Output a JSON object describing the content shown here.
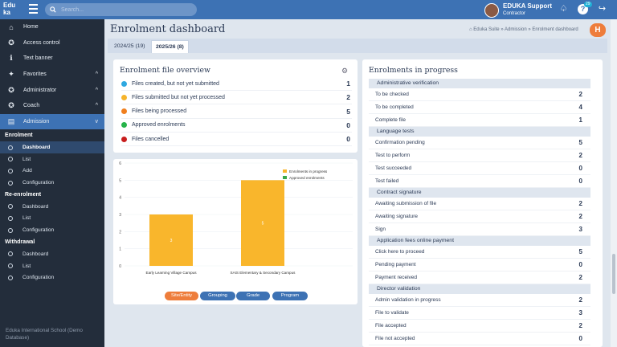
{
  "app": {
    "logo_line1": "Edu",
    "logo_line2": "ka",
    "search_placeholder": "Search..."
  },
  "user": {
    "name": "EDUKA Support",
    "role": "Contractor",
    "help_badge": "29"
  },
  "sidebar": {
    "items": [
      {
        "label": "Home",
        "icon": "home-icon",
        "glyph": "⌂"
      },
      {
        "label": "Access control",
        "icon": "user-key-icon",
        "glyph": "✪"
      },
      {
        "label": "Text banner",
        "icon": "info-icon",
        "glyph": "ℹ"
      },
      {
        "label": "Favorites",
        "icon": "pin-icon",
        "glyph": "✦",
        "chev": "^"
      },
      {
        "label": "Administrator",
        "icon": "user-cog-icon",
        "glyph": "✪",
        "chev": "^"
      },
      {
        "label": "Coach",
        "icon": "user-cog-icon",
        "glyph": "✪",
        "chev": "^"
      },
      {
        "label": "Admission",
        "icon": "document-icon",
        "glyph": "▤",
        "chev": "v"
      }
    ],
    "sections": [
      {
        "title": "Enrolment",
        "subs": [
          "Dashboard",
          "List",
          "Add",
          "Configuration"
        ]
      },
      {
        "title": "Re-enrolment",
        "subs": [
          "Dashboard",
          "List",
          "Configuration"
        ]
      },
      {
        "title": "Withdrawal",
        "subs": [
          "Dashboard",
          "List",
          "Configuration"
        ]
      }
    ],
    "footer": "Eduka International School (Demo Database)"
  },
  "page": {
    "title": "Enrolment dashboard",
    "breadcrumb": "⌂ Eduka Suite » Admission » Enrolment dashboard",
    "tabs": [
      "2024/25 (19)",
      "2025/26 (8)"
    ]
  },
  "overview": {
    "title": "Enrolment file overview",
    "rows": [
      {
        "label": "Files created, but not yet submitted",
        "count": "1",
        "color": "#2fa8e0"
      },
      {
        "label": "Files submitted but not yet processed",
        "count": "2",
        "color": "#f6b42c"
      },
      {
        "label": "Files being processed",
        "count": "5",
        "color": "#f07f1e"
      },
      {
        "label": "Approved enrolments",
        "count": "0",
        "color": "#27b34a"
      },
      {
        "label": "Files cancelled",
        "count": "0",
        "color": "#c81e1e"
      }
    ]
  },
  "chart_data": {
    "type": "bar",
    "categories": [
      "Early Learning Village Campus",
      "SAIS Elementary & Secondary Campus"
    ],
    "series": [
      {
        "name": "Enrolments in progress",
        "values": [
          3,
          5
        ],
        "color": "#f9b62c"
      },
      {
        "name": "Approved enrolments",
        "values": [
          0,
          0
        ],
        "color": "#3aa84a"
      }
    ],
    "ylim": [
      0,
      6
    ],
    "yticks": [
      "0",
      "1",
      "2",
      "3",
      "4",
      "5",
      "6"
    ],
    "data_labels": [
      "3",
      "5"
    ],
    "legend": "top-right",
    "buttons": [
      "Site/Entity",
      "Grouping",
      "Grade",
      "Program"
    ]
  },
  "progress": {
    "title": "Enrolments in progress",
    "groups": [
      {
        "title": "Administrative verification",
        "rows": [
          [
            "To be checked",
            "2"
          ],
          [
            "To be completed",
            "4"
          ],
          [
            "Complete file",
            "1"
          ]
        ]
      },
      {
        "title": "Language tests",
        "rows": [
          [
            "Confirmation pending",
            "5"
          ],
          [
            "Test to perform",
            "2"
          ],
          [
            "Test succeeded",
            "0"
          ],
          [
            "Test failed",
            "0"
          ]
        ]
      },
      {
        "title": "Contract signature",
        "rows": [
          [
            "Awaiting submission of file",
            "2"
          ],
          [
            "Awaiting signature",
            "2"
          ],
          [
            "Sign",
            "3"
          ]
        ]
      },
      {
        "title": "Application fees online payment",
        "rows": [
          [
            "Click here to proceed",
            "5"
          ],
          [
            "Pending payment",
            "0"
          ],
          [
            "Payment received",
            "2"
          ]
        ]
      },
      {
        "title": "Director validation",
        "rows": [
          [
            "Admin validation in progress",
            "2"
          ],
          [
            "File to validate",
            "3"
          ],
          [
            "File accepted",
            "2"
          ],
          [
            "File not accepted",
            "0"
          ]
        ]
      }
    ]
  }
}
